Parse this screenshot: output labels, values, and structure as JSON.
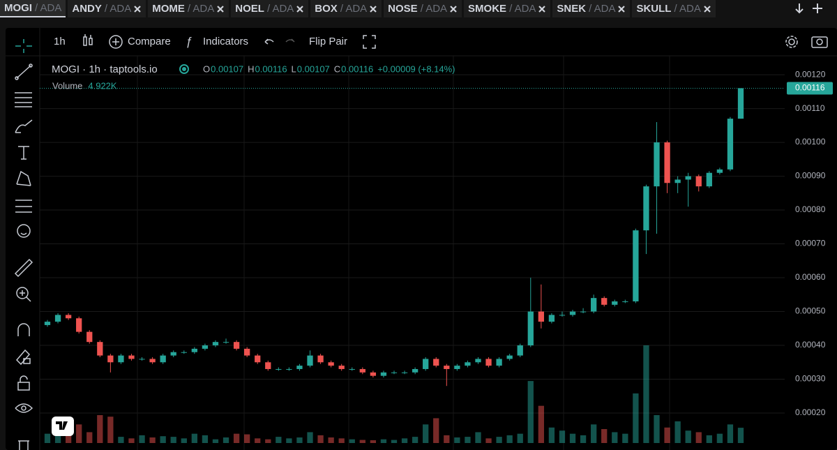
{
  "tabs": [
    {
      "label": "MOGI",
      "pair": "/ ADA",
      "active": true
    },
    {
      "label": "ANDY",
      "pair": "/ ADA",
      "active": false
    },
    {
      "label": "MOME",
      "pair": "/ ADA",
      "active": false
    },
    {
      "label": "NOEL",
      "pair": "/ ADA",
      "active": false
    },
    {
      "label": "BOX",
      "pair": "/ ADA",
      "active": false
    },
    {
      "label": "NOSE",
      "pair": "/ ADA",
      "active": false
    },
    {
      "label": "SMOKE",
      "pair": "/ ADA",
      "active": false
    },
    {
      "label": "SNEK",
      "pair": "/ ADA",
      "active": false
    },
    {
      "label": "SKULL",
      "pair": "/ ADA",
      "active": false
    }
  ],
  "toolbar": {
    "interval": "1h",
    "compare": "Compare",
    "indicators": "Indicators",
    "flip": "Flip Pair"
  },
  "legend": {
    "title": "MOGI · 1h · taptools.io",
    "ohlc": [
      {
        "key": "O",
        "value": "0.00107"
      },
      {
        "key": "H",
        "value": "0.00116"
      },
      {
        "key": "L",
        "value": "0.00107"
      },
      {
        "key": "C",
        "value": "0.00116"
      }
    ],
    "change": "+0.00009 (+8.14%)",
    "volume_label": "Volume",
    "volume_value": "4.922K"
  },
  "chart_data": {
    "type": "candlestick",
    "up_color": "#26a69a",
    "down_color": "#ef5350",
    "ylim": [
      0.0001,
      0.00126
    ],
    "yticks": [
      {
        "value": 0.0012,
        "label": "0.00120"
      },
      {
        "value": 0.0011,
        "label": "0.00110"
      },
      {
        "value": 0.001,
        "label": "0.00100"
      },
      {
        "value": 0.0009,
        "label": "0.00090"
      },
      {
        "value": 0.0008,
        "label": "0.00080"
      },
      {
        "value": 0.0007,
        "label": "0.00070"
      },
      {
        "value": 0.0006,
        "label": "0.00060"
      },
      {
        "value": 0.0005,
        "label": "0.00050"
      },
      {
        "value": 0.0004,
        "label": "0.00040"
      },
      {
        "value": 0.0003,
        "label": "0.00030"
      },
      {
        "value": 0.0002,
        "label": "0.00020"
      }
    ],
    "grid": true,
    "last_price": {
      "value": 0.00116,
      "label": "0.00116"
    },
    "open": [
      0.00046,
      0.00047,
      0.00049,
      0.00048,
      0.00044,
      0.00041,
      0.00037,
      0.00035,
      0.00037,
      0.00036,
      0.00036,
      0.00035,
      0.00037,
      0.00038,
      0.00038,
      0.00039,
      0.0004,
      0.00041,
      0.00041,
      0.00039,
      0.00037,
      0.00035,
      0.00033,
      0.00033,
      0.00033,
      0.00034,
      0.00037,
      0.00035,
      0.00034,
      0.00033,
      0.00033,
      0.00032,
      0.00031,
      0.00032,
      0.00032,
      0.00032,
      0.00033,
      0.00036,
      0.00034,
      0.00033,
      0.00034,
      0.00035,
      0.00036,
      0.00034,
      0.00036,
      0.00037,
      0.0004,
      0.0005,
      0.00047,
      0.00049,
      0.00049,
      0.0005,
      0.0005,
      0.00054,
      0.00052,
      0.00053,
      0.00053,
      0.00074,
      0.00087,
      0.001,
      0.00088,
      0.00089,
      0.0009,
      0.00087,
      0.00091,
      0.00092,
      0.00107
    ],
    "high": [
      0.000475,
      0.000495,
      0.000495,
      0.000485,
      0.000445,
      0.000415,
      0.000375,
      0.000375,
      0.000375,
      0.000365,
      0.000365,
      0.000375,
      0.000385,
      0.000385,
      0.000395,
      0.000405,
      0.000415,
      0.00042,
      0.000415,
      0.000395,
      0.000375,
      0.000355,
      0.000335,
      0.000335,
      0.000345,
      0.000385,
      0.000375,
      0.000355,
      0.000345,
      0.000335,
      0.000335,
      0.000325,
      0.000325,
      0.000325,
      0.000325,
      0.000335,
      0.000365,
      0.000365,
      0.000345,
      0.000345,
      0.000355,
      0.000365,
      0.000365,
      0.000365,
      0.000375,
      0.000405,
      0.0006,
      0.00058,
      0.000495,
      0.0005,
      0.000505,
      0.00051,
      0.00055,
      0.000545,
      0.000535,
      0.000535,
      0.000745,
      0.000875,
      0.00106,
      0.001005,
      0.0009,
      0.00091,
      0.000905,
      0.000915,
      0.000925,
      0.001075,
      0.00116
    ],
    "low": [
      0.000455,
      0.000465,
      0.000475,
      0.000435,
      0.000405,
      0.000365,
      0.00032,
      0.000345,
      0.000355,
      0.000355,
      0.000345,
      0.000345,
      0.000365,
      0.000375,
      0.000375,
      0.000385,
      0.000395,
      0.000405,
      0.000385,
      0.000365,
      0.000345,
      0.000325,
      0.000325,
      0.000325,
      0.000325,
      0.000335,
      0.000345,
      0.000335,
      0.000325,
      0.000325,
      0.000315,
      0.000305,
      0.000305,
      0.000315,
      0.000315,
      0.000315,
      0.000325,
      0.000335,
      0.00028,
      0.000325,
      0.000335,
      0.000345,
      0.000335,
      0.000335,
      0.000355,
      0.000365,
      0.000395,
      0.00045,
      0.000465,
      0.000485,
      0.000485,
      0.000495,
      0.000495,
      0.000515,
      0.000515,
      0.000525,
      0.000525,
      0.00067,
      0.00073,
      0.00085,
      0.00085,
      0.00081,
      0.000855,
      0.000865,
      0.000905,
      0.000915,
      0.00107
    ],
    "close": [
      0.00047,
      0.00049,
      0.00048,
      0.00044,
      0.00041,
      0.00037,
      0.00035,
      0.00037,
      0.00036,
      0.00036,
      0.00035,
      0.00037,
      0.00038,
      0.00038,
      0.00039,
      0.0004,
      0.00041,
      0.00041,
      0.00039,
      0.00037,
      0.00035,
      0.00033,
      0.00033,
      0.00033,
      0.00034,
      0.00037,
      0.00035,
      0.00034,
      0.00033,
      0.00033,
      0.00032,
      0.00031,
      0.00032,
      0.00032,
      0.00032,
      0.00033,
      0.00036,
      0.00034,
      0.00033,
      0.00034,
      0.00035,
      0.00036,
      0.00034,
      0.00036,
      0.00037,
      0.0004,
      0.0005,
      0.00047,
      0.00049,
      0.00049,
      0.0005,
      0.0005,
      0.00054,
      0.00052,
      0.00053,
      0.00053,
      0.00074,
      0.00087,
      0.001,
      0.00088,
      0.00089,
      0.0009,
      0.00087,
      0.00091,
      0.00092,
      0.00107,
      0.00116
    ],
    "volume": [
      3000,
      4000,
      2500,
      6000,
      3500,
      9000,
      8500,
      2000,
      1500,
      2500,
      1800,
      2200,
      2000,
      1500,
      3000,
      2500,
      1200,
      1800,
      3000,
      2800,
      1500,
      1200,
      2000,
      1500,
      1800,
      3500,
      2500,
      1800,
      1500,
      1200,
      1000,
      900,
      1200,
      1000,
      1500,
      2000,
      6000,
      8000,
      2500,
      1800,
      2000,
      3500,
      1500,
      2000,
      2500,
      3000,
      20000,
      12000,
      5000,
      4000,
      3000,
      2500,
      6000,
      4500,
      3500,
      3000,
      16000,
      31500,
      9000,
      5000,
      7000,
      4000,
      3500,
      2500,
      3000,
      6000,
      4922
    ],
    "vlim": [
      0,
      36000
    ]
  }
}
